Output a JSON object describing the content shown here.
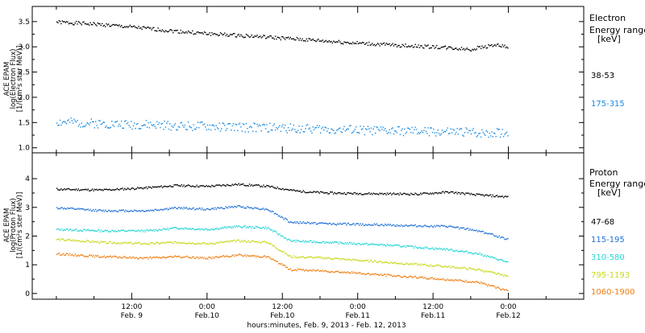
{
  "chart_data": [
    {
      "type": "scatter",
      "ylabel_lines": [
        "ACE EPAM",
        "log(Electron Flux)",
        "[1/(cm²s ster MeV)]"
      ],
      "ylim": [
        0.9,
        3.8
      ],
      "yticks": [
        1.0,
        1.5,
        2.0,
        2.5,
        3.0,
        3.5
      ],
      "ytick_labels": [
        "1.0",
        "1.5",
        "2.0",
        "2.5",
        "3.0",
        "3.5"
      ],
      "legend_title_lines": [
        "Electron",
        "Energy range",
        "[keV]"
      ],
      "series": [
        {
          "name": "38-53",
          "color": "#000000",
          "points": [
            [
              0,
              3.5
            ],
            [
              0.25,
              3.46
            ],
            [
              0.5,
              3.4
            ],
            [
              0.75,
              3.33
            ],
            [
              1.0,
              3.27
            ],
            [
              1.25,
              3.23
            ],
            [
              1.5,
              3.18
            ],
            [
              1.75,
              3.13
            ],
            [
              2.0,
              3.08
            ],
            [
              2.25,
              3.04
            ],
            [
              2.5,
              3.01
            ],
            [
              2.75,
              2.96
            ],
            [
              2.9,
              3.05
            ],
            [
              3.0,
              3.0
            ]
          ]
        },
        {
          "name": "175-315",
          "color": "#1a8ae0",
          "points": [
            [
              0,
              1.52
            ],
            [
              0.5,
              1.47
            ],
            [
              1.0,
              1.43
            ],
            [
              1.5,
              1.4
            ],
            [
              2.0,
              1.36
            ],
            [
              2.5,
              1.33
            ],
            [
              3.0,
              1.3
            ]
          ]
        }
      ]
    },
    {
      "type": "scatter",
      "ylabel_lines": [
        "ACE EPAM",
        "log(Proton Flux)",
        "[1/(cm²s ster MeV)]"
      ],
      "ylim": [
        -0.2,
        4.9
      ],
      "yticks": [
        0,
        1,
        2,
        3,
        4
      ],
      "ytick_labels": [
        "0",
        "1",
        "2",
        "3",
        "4"
      ],
      "legend_title_lines": [
        "Proton",
        "Energy range",
        "[keV]"
      ],
      "series": [
        {
          "name": "47-68",
          "color": "#000000",
          "points": [
            [
              0,
              3.65
            ],
            [
              0.3,
              3.62
            ],
            [
              0.6,
              3.7
            ],
            [
              0.8,
              3.78
            ],
            [
              1.0,
              3.75
            ],
            [
              1.2,
              3.82
            ],
            [
              1.4,
              3.75
            ],
            [
              1.6,
              3.58
            ],
            [
              1.8,
              3.52
            ],
            [
              2.0,
              3.5
            ],
            [
              2.4,
              3.48
            ],
            [
              2.6,
              3.55
            ],
            [
              2.8,
              3.45
            ],
            [
              3.0,
              3.38
            ]
          ]
        },
        {
          "name": "115-195",
          "color": "#1f6fd6",
          "points": [
            [
              0,
              3.0
            ],
            [
              0.3,
              2.9
            ],
            [
              0.6,
              2.9
            ],
            [
              0.8,
              3.0
            ],
            [
              1.0,
              2.95
            ],
            [
              1.2,
              3.05
            ],
            [
              1.4,
              2.95
            ],
            [
              1.55,
              2.5
            ],
            [
              1.8,
              2.45
            ],
            [
              2.2,
              2.4
            ],
            [
              2.6,
              2.35
            ],
            [
              2.8,
              2.2
            ],
            [
              3.0,
              1.9
            ]
          ]
        },
        {
          "name": "310-580",
          "color": "#22d4d4",
          "points": [
            [
              0,
              2.25
            ],
            [
              0.3,
              2.2
            ],
            [
              0.6,
              2.2
            ],
            [
              0.8,
              2.3
            ],
            [
              1.0,
              2.25
            ],
            [
              1.2,
              2.35
            ],
            [
              1.4,
              2.3
            ],
            [
              1.55,
              1.85
            ],
            [
              1.8,
              1.8
            ],
            [
              2.2,
              1.7
            ],
            [
              2.6,
              1.55
            ],
            [
              2.8,
              1.4
            ],
            [
              3.0,
              1.1
            ]
          ]
        },
        {
          "name": "795-1193",
          "color": "#c8d81a",
          "points": [
            [
              0,
              1.9
            ],
            [
              0.3,
              1.8
            ],
            [
              0.6,
              1.75
            ],
            [
              0.8,
              1.8
            ],
            [
              1.0,
              1.75
            ],
            [
              1.2,
              1.85
            ],
            [
              1.4,
              1.8
            ],
            [
              1.55,
              1.3
            ],
            [
              1.8,
              1.25
            ],
            [
              2.2,
              1.1
            ],
            [
              2.6,
              0.95
            ],
            [
              2.8,
              0.85
            ],
            [
              3.0,
              0.6
            ]
          ]
        },
        {
          "name": "1060-1900",
          "color": "#f07d10",
          "points": [
            [
              0,
              1.4
            ],
            [
              0.3,
              1.3
            ],
            [
              0.6,
              1.25
            ],
            [
              0.8,
              1.3
            ],
            [
              1.0,
              1.25
            ],
            [
              1.2,
              1.35
            ],
            [
              1.4,
              1.3
            ],
            [
              1.55,
              0.85
            ],
            [
              1.8,
              0.8
            ],
            [
              2.2,
              0.65
            ],
            [
              2.6,
              0.5
            ],
            [
              2.8,
              0.4
            ],
            [
              3.0,
              0.1
            ]
          ]
        }
      ]
    }
  ],
  "x_axis": {
    "xlim": [
      -0.16,
      3.5
    ],
    "major_ticks": [
      0.5,
      1.0,
      1.5,
      2.0,
      2.5,
      3.0
    ],
    "minor_ticks": [
      0,
      0.25,
      0.75,
      1.25,
      1.75,
      2.25,
      2.75,
      3.25
    ],
    "tick_labels": [
      {
        "x": 0.5,
        "time": "12:00",
        "date": "Feb. 9"
      },
      {
        "x": 1.0,
        "time": "0:00",
        "date": "Feb.10"
      },
      {
        "x": 1.5,
        "time": "12:00",
        "date": "Feb.10"
      },
      {
        "x": 2.0,
        "time": "0:00",
        "date": "Feb.11"
      },
      {
        "x": 2.5,
        "time": "12:00",
        "date": "Feb.11"
      },
      {
        "x": 3.0,
        "time": "0:00",
        "date": "Feb.12"
      }
    ],
    "xlabel": "hours:minutes, Feb.  9, 2013 - Feb. 12, 2013"
  }
}
